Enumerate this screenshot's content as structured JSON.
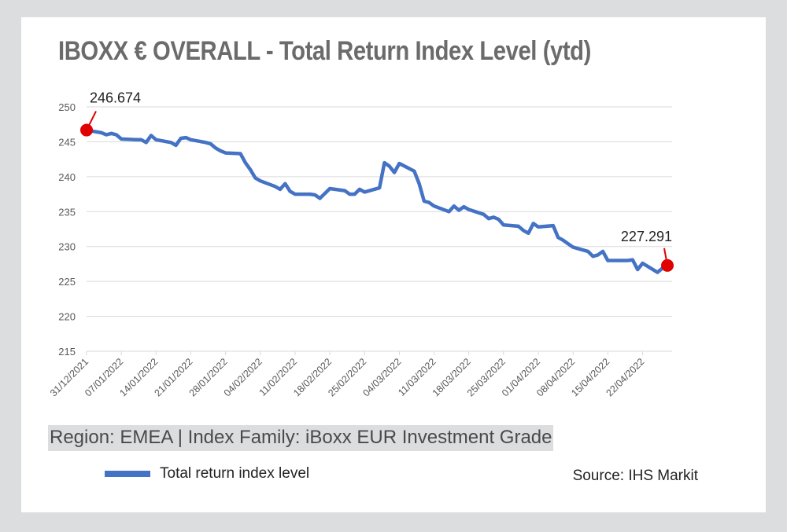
{
  "title": "IBOXX € OVERALL - Total Return Index Level (ytd)",
  "subtitle": "Region: EMEA | Index Family: iBoxx EUR Investment Grade",
  "source": "Source: IHS Markit",
  "colors": {
    "series": "#4472c4",
    "marker": "#e00000",
    "grid": "#d9d9d9",
    "axis_text": "#595959"
  },
  "chart_data": {
    "type": "line",
    "title": "IBOXX € OVERALL - Total Return Index Level (ytd)",
    "xlabel": "",
    "ylabel": "",
    "ylim": [
      215,
      250
    ],
    "yticks": [
      215,
      220,
      225,
      230,
      235,
      240,
      245,
      250
    ],
    "grid": true,
    "legend_position": "bottom-left",
    "x_tick_labels": [
      "31/12/2021",
      "07/01/2022",
      "14/01/2022",
      "21/01/2022",
      "28/01/2022",
      "04/02/2022",
      "11/02/2022",
      "18/02/2022",
      "25/02/2022",
      "04/03/2022",
      "11/03/2022",
      "18/03/2022",
      "25/03/2022",
      "01/04/2022",
      "08/04/2022",
      "15/04/2022",
      "22/04/2022"
    ],
    "series": [
      {
        "name": "Total return index level",
        "x": [
          "2021-12-31",
          "2022-01-03",
          "2022-01-04",
          "2022-01-05",
          "2022-01-06",
          "2022-01-07",
          "2022-01-10",
          "2022-01-11",
          "2022-01-12",
          "2022-01-13",
          "2022-01-14",
          "2022-01-17",
          "2022-01-18",
          "2022-01-19",
          "2022-01-20",
          "2022-01-21",
          "2022-01-24",
          "2022-01-25",
          "2022-01-26",
          "2022-01-27",
          "2022-01-28",
          "2022-01-31",
          "2022-02-01",
          "2022-02-02",
          "2022-02-03",
          "2022-02-04",
          "2022-02-07",
          "2022-02-08",
          "2022-02-09",
          "2022-02-10",
          "2022-02-11",
          "2022-02-14",
          "2022-02-15",
          "2022-02-16",
          "2022-02-17",
          "2022-02-18",
          "2022-02-21",
          "2022-02-22",
          "2022-02-23",
          "2022-02-24",
          "2022-02-25",
          "2022-02-28",
          "2022-03-01",
          "2022-03-02",
          "2022-03-03",
          "2022-03-04",
          "2022-03-07",
          "2022-03-08",
          "2022-03-09",
          "2022-03-10",
          "2022-03-11",
          "2022-03-14",
          "2022-03-15",
          "2022-03-16",
          "2022-03-17",
          "2022-03-18",
          "2022-03-21",
          "2022-03-22",
          "2022-03-23",
          "2022-03-24",
          "2022-03-25",
          "2022-03-28",
          "2022-03-29",
          "2022-03-30",
          "2022-03-31",
          "2022-04-01",
          "2022-04-04",
          "2022-04-05",
          "2022-04-06",
          "2022-04-07",
          "2022-04-08",
          "2022-04-11",
          "2022-04-12",
          "2022-04-13",
          "2022-04-14",
          "2022-04-15",
          "2022-04-18",
          "2022-04-19",
          "2022-04-20",
          "2022-04-21",
          "2022-04-22",
          "2022-04-25",
          "2022-04-26",
          "2022-04-27"
        ],
        "values": [
          246.674,
          246.3,
          246.0,
          246.2,
          246.0,
          245.4,
          245.3,
          245.3,
          244.9,
          245.9,
          245.3,
          244.9,
          244.5,
          245.5,
          245.6,
          245.3,
          244.9,
          244.7,
          244.1,
          243.7,
          243.4,
          243.3,
          242.0,
          241.0,
          239.8,
          239.4,
          238.6,
          238.2,
          239.0,
          237.9,
          237.5,
          237.5,
          237.4,
          236.9,
          237.6,
          238.3,
          238.0,
          237.5,
          237.5,
          238.2,
          237.8,
          238.4,
          242.0,
          241.5,
          240.6,
          241.9,
          240.8,
          239.0,
          236.5,
          236.3,
          235.8,
          235.0,
          235.8,
          235.2,
          235.7,
          235.3,
          234.6,
          234.0,
          234.2,
          233.9,
          233.1,
          232.9,
          232.3,
          231.9,
          233.3,
          232.8,
          233.0,
          231.3,
          230.9,
          230.4,
          229.9,
          229.3,
          228.6,
          228.8,
          229.3,
          228.0,
          228.0,
          228.0,
          228.1,
          226.7,
          227.6,
          226.3,
          226.9,
          227.291
        ]
      }
    ],
    "annotations": [
      {
        "x": "2021-12-31",
        "value": 246.674,
        "label": "246.674"
      },
      {
        "x": "2022-04-27",
        "value": 227.291,
        "label": "227.291"
      }
    ]
  }
}
